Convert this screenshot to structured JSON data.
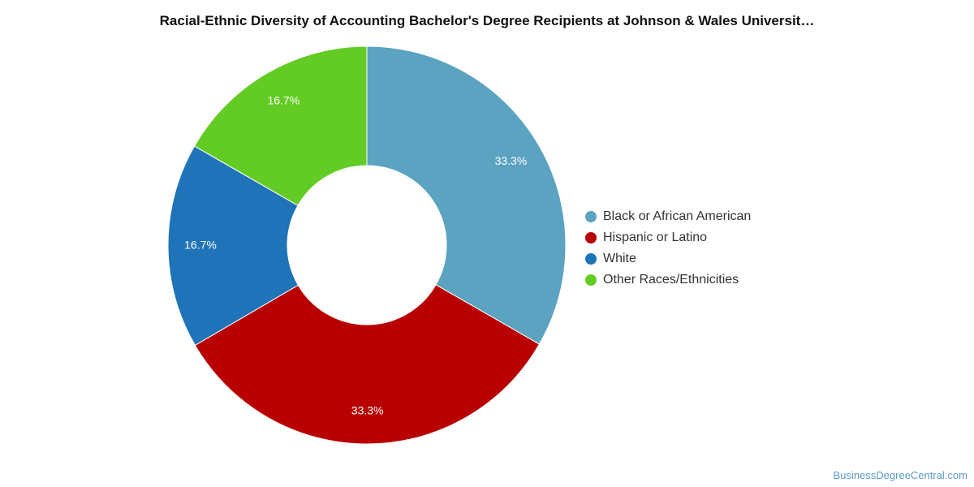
{
  "chart_data": {
    "type": "pie",
    "title": "Racial-Ethnic Diversity of Accounting Bachelor's Degree Recipients at Johnson & Wales Universit…",
    "categories": [
      "Black or African American",
      "Hispanic or Latino",
      "White",
      "Other Races/Ethnicities"
    ],
    "values": [
      33.3,
      33.3,
      16.7,
      16.7
    ],
    "data_labels": [
      "33.3%",
      "33.3%",
      "16.7%",
      "16.7%"
    ],
    "colors": [
      "#5ba3c0",
      "#b90000",
      "#1f73b8",
      "#62cc24"
    ],
    "donut": true,
    "legend": "right"
  },
  "watermark": "BusinessDegreeCentral.com"
}
